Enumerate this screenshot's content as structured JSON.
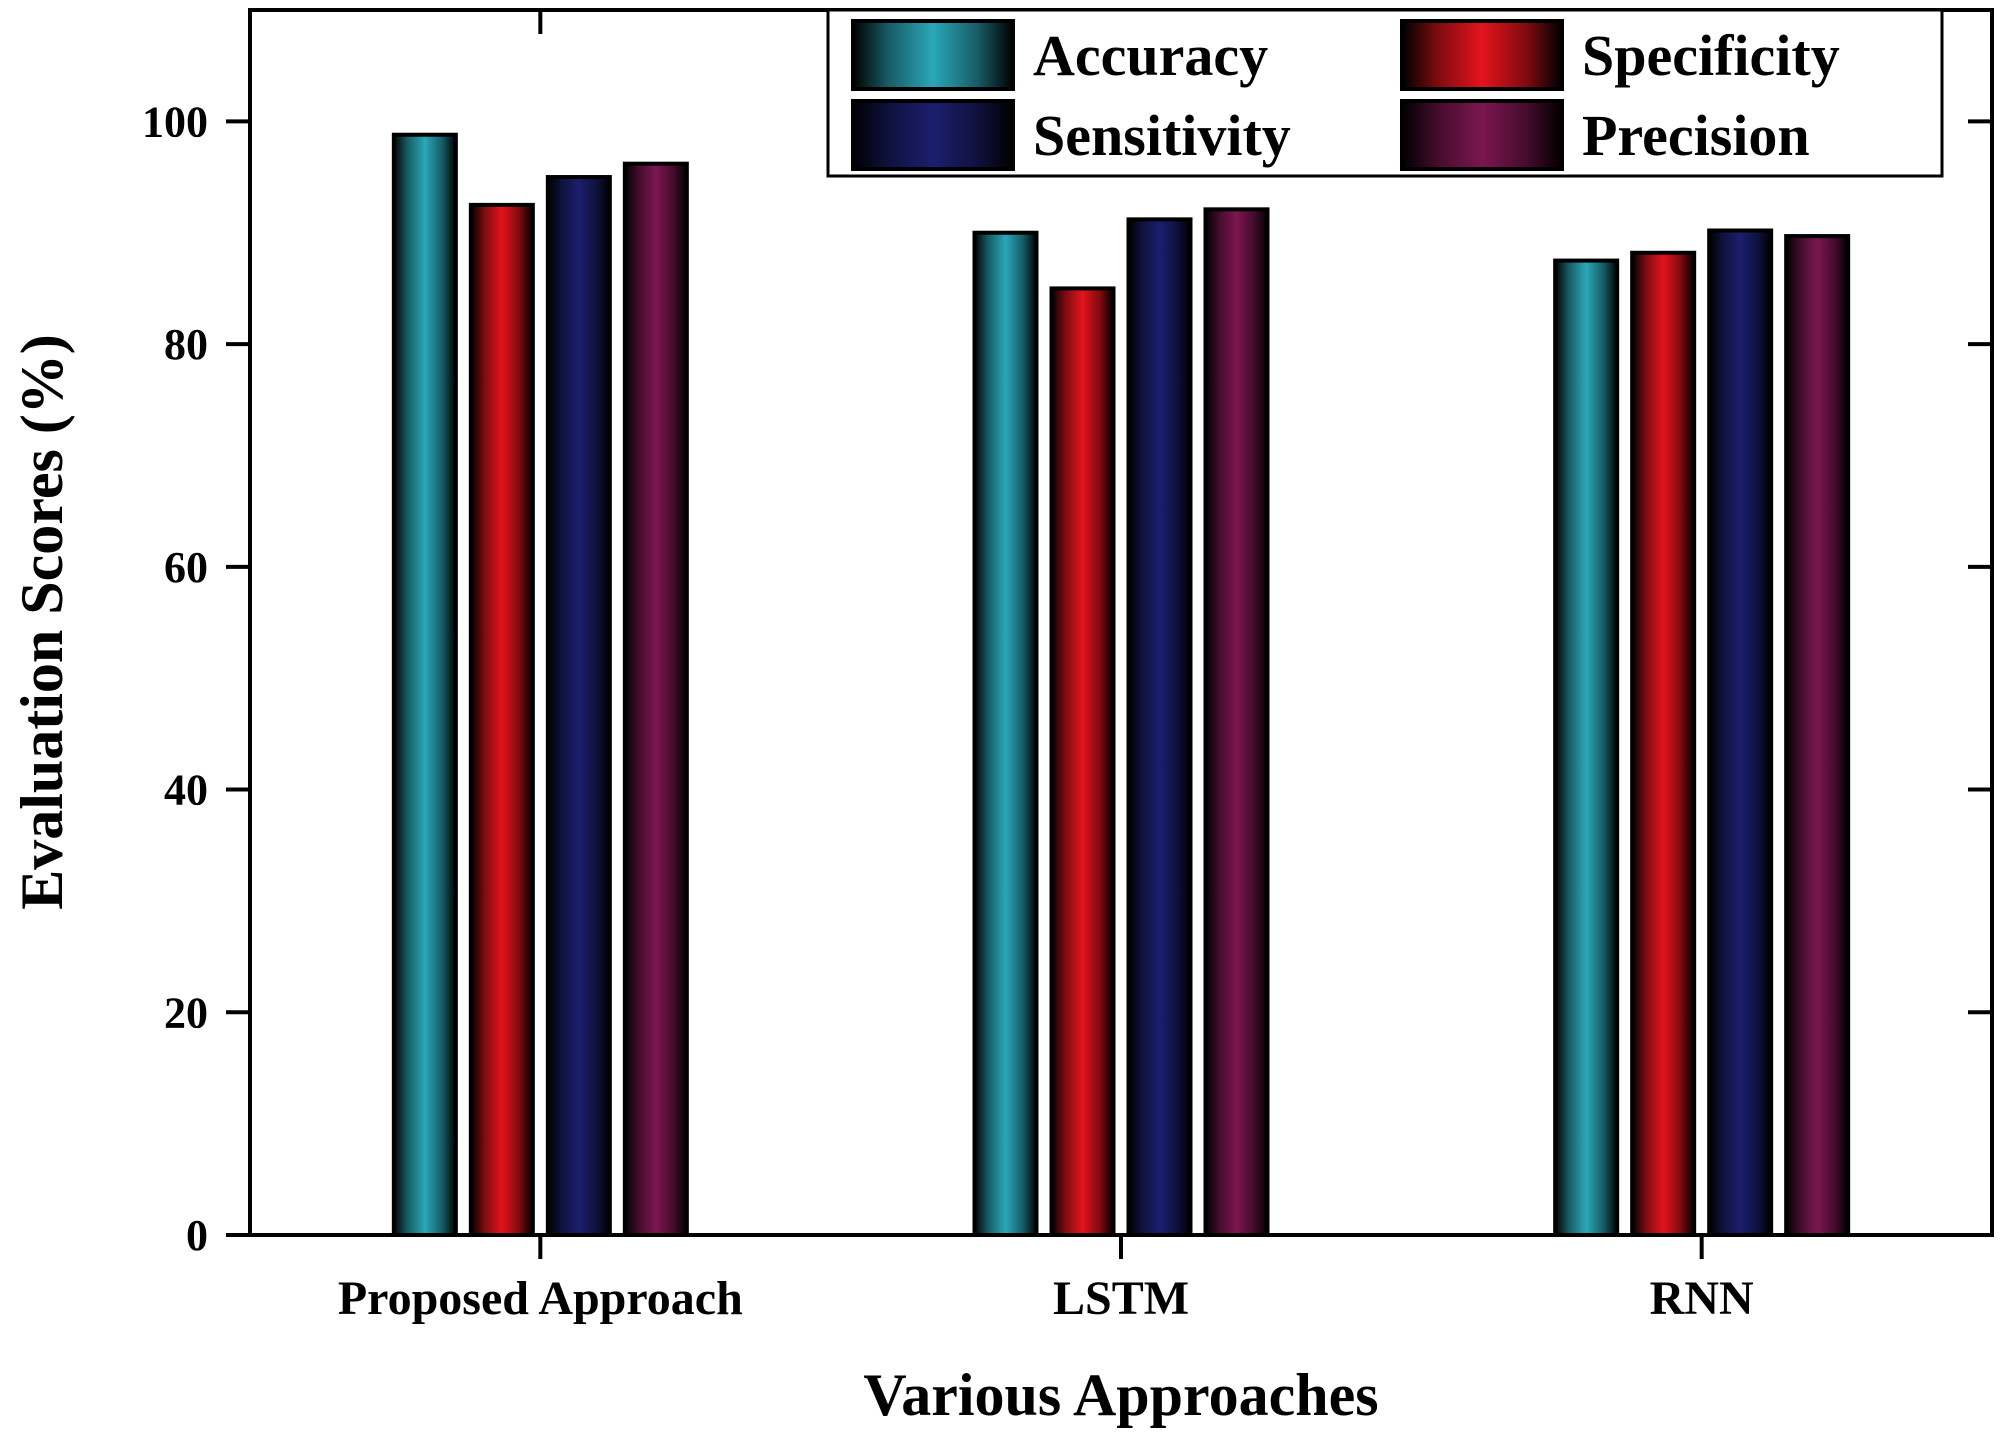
{
  "chart_data": {
    "type": "bar",
    "xlabel": "Various Approaches",
    "ylabel": "Evaluation Scores (%)",
    "ylim": [
      0,
      110
    ],
    "yticks": [
      0,
      20,
      40,
      60,
      80,
      100
    ],
    "grid": false,
    "legend_position": "top-right",
    "categories": [
      "Proposed Approach",
      "LSTM",
      "RNN"
    ],
    "series": [
      {
        "name": "Accuracy",
        "color": "#2aa7b8",
        "values": [
          98.8,
          90.0,
          87.5
        ]
      },
      {
        "name": "Specificity",
        "color": "#e3141c",
        "values": [
          92.5,
          85.0,
          88.2
        ]
      },
      {
        "name": "Sensitivity",
        "color": "#1b1e6e",
        "values": [
          95.0,
          91.2,
          90.2
        ]
      },
      {
        "name": "Precision",
        "color": "#7c1650",
        "values": [
          96.2,
          92.1,
          89.7
        ]
      }
    ]
  }
}
